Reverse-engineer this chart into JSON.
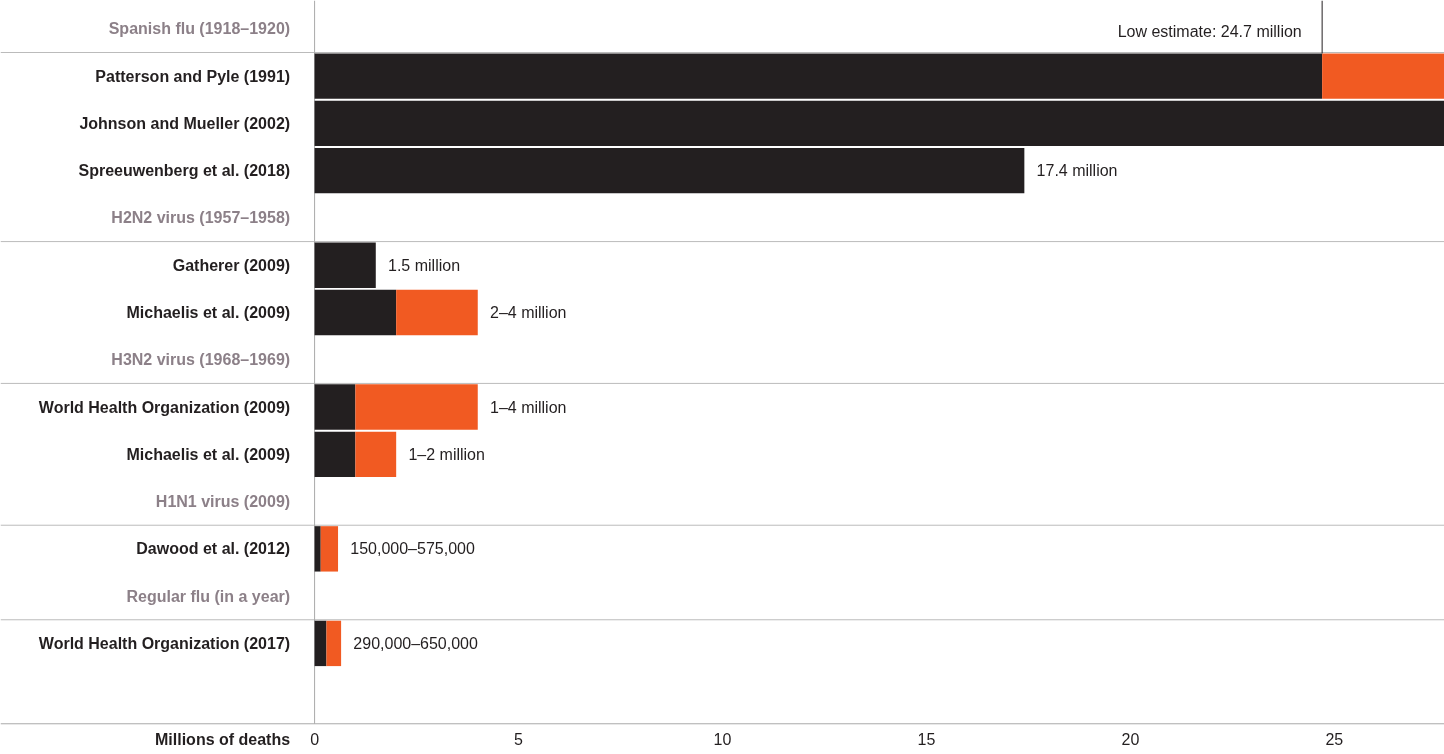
{
  "chart_data": {
    "type": "bar",
    "orientation": "horizontal",
    "stacked": true,
    "xlabel": "Millions of deaths",
    "categories": [
      "Spanish flu (1918–1920)",
      "Patterson and Pyle (1991)",
      "Johnson and Mueller (2002)",
      "Spreeuwenberg et al. (2018)",
      "H2N2 virus (1957–1958)",
      "Gatherer (2009)",
      "Michaelis et al. (2009)",
      "H3N2 virus (1968–1969)",
      "World Health Organization (2009)",
      "Michaelis et al. (2009)",
      "H1N1 virus (2009)",
      "Dawood et al. (2012)",
      "Regular flu (in a year)",
      "World Health Organization (2017)"
    ],
    "series": [
      {
        "color": "#231f20",
        "values": [
          null,
          24.7,
          27.7,
          17.4,
          null,
          1.5,
          2,
          null,
          1,
          1,
          null,
          0.15,
          null,
          0.29
        ],
        "value_labels": [
          null,
          null,
          null,
          "17.4 million",
          null,
          "1.5 million",
          null,
          null,
          null,
          null,
          null,
          null,
          null,
          null
        ]
      },
      {
        "color": "#f15a22",
        "values": [
          null,
          3.0,
          null,
          null,
          null,
          null,
          2,
          null,
          3,
          1,
          null,
          0.425,
          null,
          0.36
        ],
        "value_labels": [
          null,
          null,
          null,
          null,
          null,
          null,
          "2–4 million",
          null,
          "1–4 million",
          "1–2 million",
          null,
          "150,000–575,000",
          null,
          "290,000–650,000"
        ]
      }
    ],
    "xlim": [
      -7.7,
      27.7
    ],
    "xticks": [
      0,
      5,
      10,
      15,
      20,
      25
    ],
    "grid": false,
    "ref_lines": [
      {
        "axis": "x",
        "value": 24.7,
        "label": "Low estimate: 24.7 million",
        "color": "#231f20"
      }
    ]
  }
}
